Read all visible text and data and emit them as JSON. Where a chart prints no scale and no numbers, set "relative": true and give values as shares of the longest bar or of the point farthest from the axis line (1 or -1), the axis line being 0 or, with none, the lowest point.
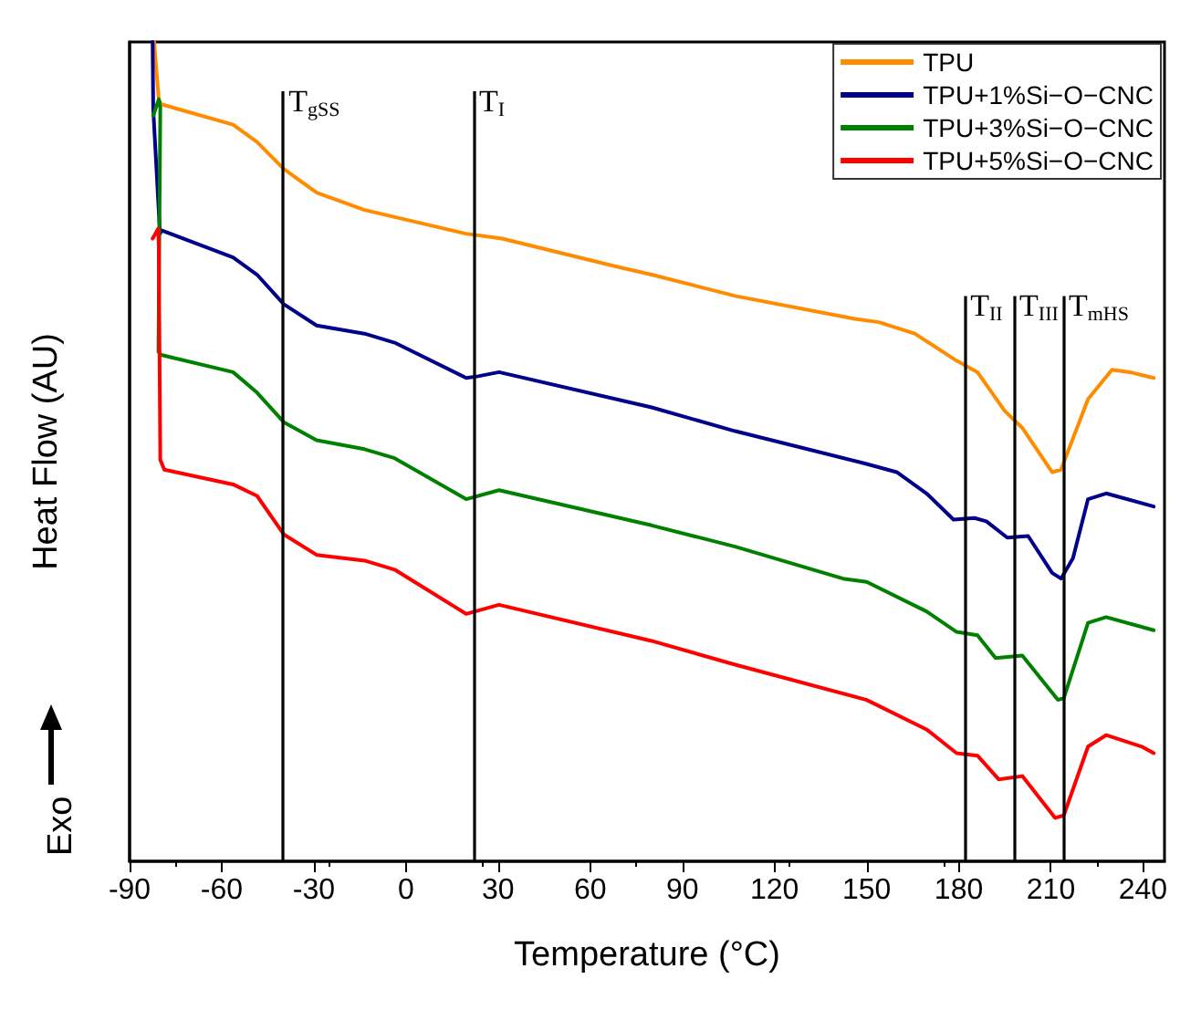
{
  "chart_data": {
    "type": "line",
    "relative": true,
    "xlabel": "Temperature (°C)",
    "ylabel": "Heat Flow (AU)",
    "xlim": [
      -90,
      247
    ],
    "xticks": [
      -90,
      -60,
      -30,
      0,
      30,
      60,
      90,
      120,
      150,
      180,
      210,
      240
    ],
    "grid": false,
    "legend": "top right",
    "line_style": "solid",
    "annotations": [
      "Exo"
    ],
    "ref_lines": [
      {
        "axis": "x",
        "value": -40,
        "label": "T$_{gSS}$",
        "color": "#000000"
      },
      {
        "axis": "x",
        "value": 22,
        "label": "T$_{I}$",
        "color": "#000000"
      },
      {
        "axis": "x",
        "value": 182,
        "label": "T$_{II}$",
        "color": "#000000"
      },
      {
        "axis": "x",
        "value": 198,
        "label": "T$_{III}$",
        "color": "#000000"
      },
      {
        "axis": "x",
        "value": 214,
        "label": "T$_{mHS}$",
        "color": "#000000"
      }
    ],
    "series": [
      {
        "name": "TPU",
        "color": "#ff8c00",
        "x": [
          -82,
          -80.5,
          -79.7,
          -56.3,
          -48.5,
          -39.8,
          -29.1,
          -13.5,
          19.6,
          31.3,
          68.3,
          80,
          107.2,
          146.2,
          154,
          165.7,
          179.3,
          186.1,
          194.9,
          200.7,
          210.4,
          213.3,
          222.1,
          229.9,
          235.7,
          243.5
        ],
        "values": [
          1.0,
          0.93,
          0.924,
          0.899,
          0.878,
          0.845,
          0.816,
          0.795,
          0.766,
          0.76,
          0.726,
          0.716,
          0.69,
          0.662,
          0.658,
          0.644,
          0.611,
          0.597,
          0.55,
          0.529,
          0.475,
          0.478,
          0.564,
          0.6,
          0.597,
          0.59
        ]
      },
      {
        "name": "TPU+1%Si−O−CNC",
        "color": "#00008b",
        "x": [
          -82.5,
          -82.3,
          -80.1,
          -79.5,
          -56.3,
          -48.5,
          -39.8,
          -29.1,
          -13.5,
          -3.7,
          19.6,
          23.5,
          30.3,
          80,
          107.2,
          150,
          159.8,
          169.5,
          178.3,
          185.1,
          189,
          195.8,
          202.6,
          210.4,
          213.3,
          217.2,
          222.1,
          228,
          243.5
        ],
        "values": [
          1.0,
          0.918,
          0.766,
          0.77,
          0.737,
          0.716,
          0.68,
          0.654,
          0.644,
          0.633,
          0.59,
          0.592,
          0.597,
          0.554,
          0.525,
          0.485,
          0.475,
          0.449,
          0.417,
          0.419,
          0.415,
          0.395,
          0.397,
          0.352,
          0.345,
          0.37,
          0.442,
          0.449,
          0.433
        ]
      },
      {
        "name": "TPU+3%Si−O−CNC",
        "color": "#008000",
        "x": [
          -82.3,
          -80.5,
          -80,
          -80.6,
          -79.7,
          -56.3,
          -48.5,
          -39.8,
          -29.1,
          -13.5,
          -3.7,
          19.6,
          30.3,
          80,
          107.2,
          142.3,
          150,
          169.5,
          179.3,
          186.1,
          192,
          200.7,
          212.3,
          214.2,
          222.1,
          228,
          243.5
        ],
        "values": [
          0.91,
          0.93,
          0.92,
          0.622,
          0.618,
          0.597,
          0.572,
          0.536,
          0.514,
          0.503,
          0.492,
          0.442,
          0.453,
          0.41,
          0.384,
          0.345,
          0.341,
          0.305,
          0.28,
          0.276,
          0.248,
          0.251,
          0.197,
          0.199,
          0.291,
          0.298,
          0.282
        ]
      },
      {
        "name": "TPU+5%Si−O−CNC",
        "color": "#ff0000",
        "x": [
          -82.5,
          -80.7,
          -80.5,
          -80,
          -78.7,
          -56.3,
          -48.5,
          -39.8,
          -29.1,
          -13.5,
          -3.7,
          19.6,
          30.3,
          80,
          107.2,
          150,
          169.5,
          179.3,
          186.1,
          193,
          200.7,
          211.4,
          214.2,
          222.1,
          228,
          239.6,
          243.5
        ],
        "values": [
          0.76,
          0.772,
          0.75,
          0.49,
          0.478,
          0.46,
          0.446,
          0.399,
          0.374,
          0.367,
          0.356,
          0.302,
          0.313,
          0.269,
          0.24,
          0.197,
          0.161,
          0.132,
          0.129,
          0.1,
          0.104,
          0.053,
          0.056,
          0.14,
          0.154,
          0.14,
          0.132
        ]
      }
    ]
  }
}
